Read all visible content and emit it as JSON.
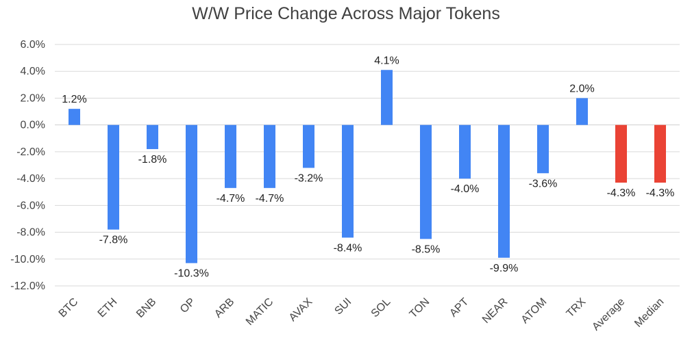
{
  "chart_data": {
    "type": "bar",
    "title": "W/W Price Change Across Major Tokens",
    "categories": [
      "BTC",
      "ETH",
      "BNB",
      "OP",
      "ARB",
      "MATIC",
      "AVAX",
      "SUI",
      "SOL",
      "TON",
      "APT",
      "NEAR",
      "ATOM",
      "TRX",
      "Average",
      "Median"
    ],
    "values": [
      1.2,
      -7.8,
      -1.8,
      -10.3,
      -4.7,
      -4.7,
      -3.2,
      -8.4,
      4.1,
      -8.5,
      -4.0,
      -9.9,
      -3.6,
      2.0,
      -4.3,
      -4.3
    ],
    "data_labels": [
      "1.2%",
      "-7.8%",
      "-1.8%",
      "-10.3%",
      "-4.7%",
      "-4.7%",
      "-3.2%",
      "-8.4%",
      "4.1%",
      "-8.5%",
      "-4.0%",
      "-9.9%",
      "-3.6%",
      "2.0%",
      "-4.3%",
      "-4.3%"
    ],
    "ylim": [
      -12,
      6
    ],
    "yticks": [
      6,
      4,
      2,
      0,
      -2,
      -4,
      -6,
      -8,
      -10,
      -12
    ],
    "ytick_labels": [
      "6.0%",
      "4.0%",
      "2.0%",
      "0.0%",
      "-2.0%",
      "-4.0%",
      "-6.0%",
      "-8.0%",
      "-10.0%",
      "-12.0%"
    ],
    "xlabel": "",
    "ylabel": "",
    "grid": true,
    "colors": {
      "token_bar": "#4285f4",
      "summary_bar": "#ea4335",
      "gridline": "#d9d9d9"
    },
    "summary_categories": [
      "Average",
      "Median"
    ]
  }
}
